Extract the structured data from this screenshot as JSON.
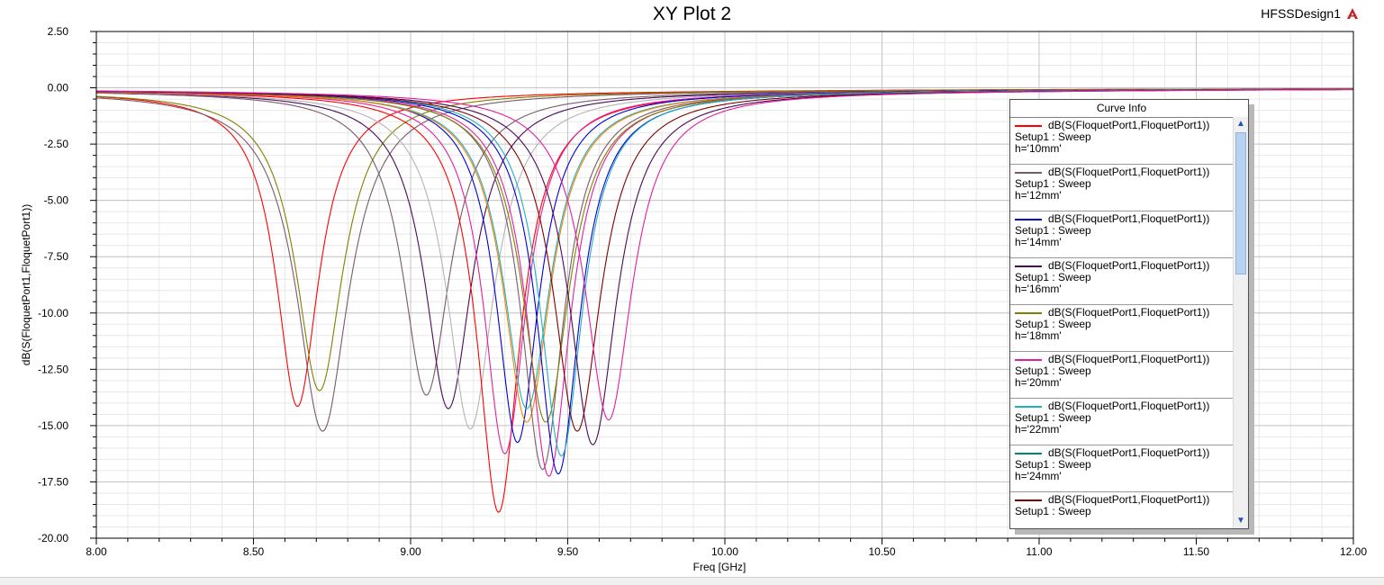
{
  "header": {
    "title": "XY Plot 2",
    "design_name": "HFSSDesign1",
    "design_icon": "ansys-logo-icon"
  },
  "legend": {
    "title": "Curve Info",
    "entries": [
      {
        "trace": "dB(S(FloquetPort1,FloquetPort1))",
        "setup": "Setup1 : Sweep",
        "param": "h='10mm'",
        "color": "#ff0000"
      },
      {
        "trace": "dB(S(FloquetPort1,FloquetPort1))",
        "setup": "Setup1 : Sweep",
        "param": "h='12mm'",
        "color": "#7a5a6a"
      },
      {
        "trace": "dB(S(FloquetPort1,FloquetPort1))",
        "setup": "Setup1 : Sweep",
        "param": "h='14mm'",
        "color": "#0000d0"
      },
      {
        "trace": "dB(S(FloquetPort1,FloquetPort1))",
        "setup": "Setup1 : Sweep",
        "param": "h='16mm'",
        "color": "#4b0a5a"
      },
      {
        "trace": "dB(S(FloquetPort1,FloquetPort1))",
        "setup": "Setup1 : Sweep",
        "param": "h='18mm'",
        "color": "#808000"
      },
      {
        "trace": "dB(S(FloquetPort1,FloquetPort1))",
        "setup": "Setup1 : Sweep",
        "param": "h='20mm'",
        "color": "#e020a0"
      },
      {
        "trace": "dB(S(FloquetPort1,FloquetPort1))",
        "setup": "Setup1 : Sweep",
        "param": "h='22mm'",
        "color": "#20b0c0"
      },
      {
        "trace": "dB(S(FloquetPort1,FloquetPort1))",
        "setup": "Setup1 : Sweep",
        "param": "h='24mm'",
        "color": "#008080"
      },
      {
        "trace": "dB(S(FloquetPort1,FloquetPort1))",
        "setup": "Setup1 : Sweep",
        "param": "",
        "color": "#800000"
      }
    ]
  },
  "chart_data": {
    "type": "line",
    "title": "XY Plot 2",
    "xlabel": "Freq [GHz]",
    "ylabel": "dB(S(FloquetPort1,FloquetPort1))",
    "xlim": [
      8.0,
      12.0
    ],
    "ylim": [
      -20.0,
      2.5
    ],
    "xticks": [
      "8.00",
      "8.50",
      "9.00",
      "9.50",
      "10.00",
      "10.50",
      "11.00",
      "11.50",
      "12.00"
    ],
    "yticks": [
      "2.50",
      "0.00",
      "-2.50",
      "-5.00",
      "-7.50",
      "-10.00",
      "-12.50",
      "-15.00",
      "-17.50",
      "-20.00"
    ],
    "grid": true,
    "legend_position": "right",
    "resonances": [
      {
        "f0": 8.64,
        "depth": -13.9,
        "width": 0.09,
        "color": "#ff0000"
      },
      {
        "f0": 8.72,
        "depth": -15.0,
        "width": 0.11,
        "color": "#7a5a6a"
      },
      {
        "f0": 8.71,
        "depth": -13.2,
        "width": 0.1,
        "color": "#808000"
      },
      {
        "f0": 9.05,
        "depth": -13.4,
        "width": 0.1,
        "color": "#7a5a6a"
      },
      {
        "f0": 9.12,
        "depth": -14.0,
        "width": 0.1,
        "color": "#4b0a5a"
      },
      {
        "f0": 9.19,
        "depth": -14.9,
        "width": 0.1,
        "color": "#b4b4b4"
      },
      {
        "f0": 9.28,
        "depth": -18.6,
        "width": 0.09,
        "color": "#ff0000"
      },
      {
        "f0": 9.3,
        "depth": -16.0,
        "width": 0.09,
        "color": "#e020a0"
      },
      {
        "f0": 9.34,
        "depth": -15.5,
        "width": 0.09,
        "color": "#0000d0"
      },
      {
        "f0": 9.37,
        "depth": -14.0,
        "width": 0.1,
        "color": "#20b0c0"
      },
      {
        "f0": 9.37,
        "depth": -14.6,
        "width": 0.1,
        "color": "#ff8000"
      },
      {
        "f0": 9.42,
        "depth": -16.7,
        "width": 0.09,
        "color": "#7a5a6a"
      },
      {
        "f0": 9.44,
        "depth": -17.0,
        "width": 0.09,
        "color": "#e020a0"
      },
      {
        "f0": 9.43,
        "depth": -14.6,
        "width": 0.1,
        "color": "#808000"
      },
      {
        "f0": 9.47,
        "depth": -16.9,
        "width": 0.09,
        "color": "#0000d0"
      },
      {
        "f0": 9.48,
        "depth": -16.1,
        "width": 0.09,
        "color": "#20b0c0"
      },
      {
        "f0": 9.53,
        "depth": -15.0,
        "width": 0.1,
        "color": "#800000"
      },
      {
        "f0": 9.58,
        "depth": -15.6,
        "width": 0.1,
        "color": "#4b0a5a"
      },
      {
        "f0": 9.63,
        "depth": -14.5,
        "width": 0.1,
        "color": "#e020a0"
      }
    ]
  }
}
